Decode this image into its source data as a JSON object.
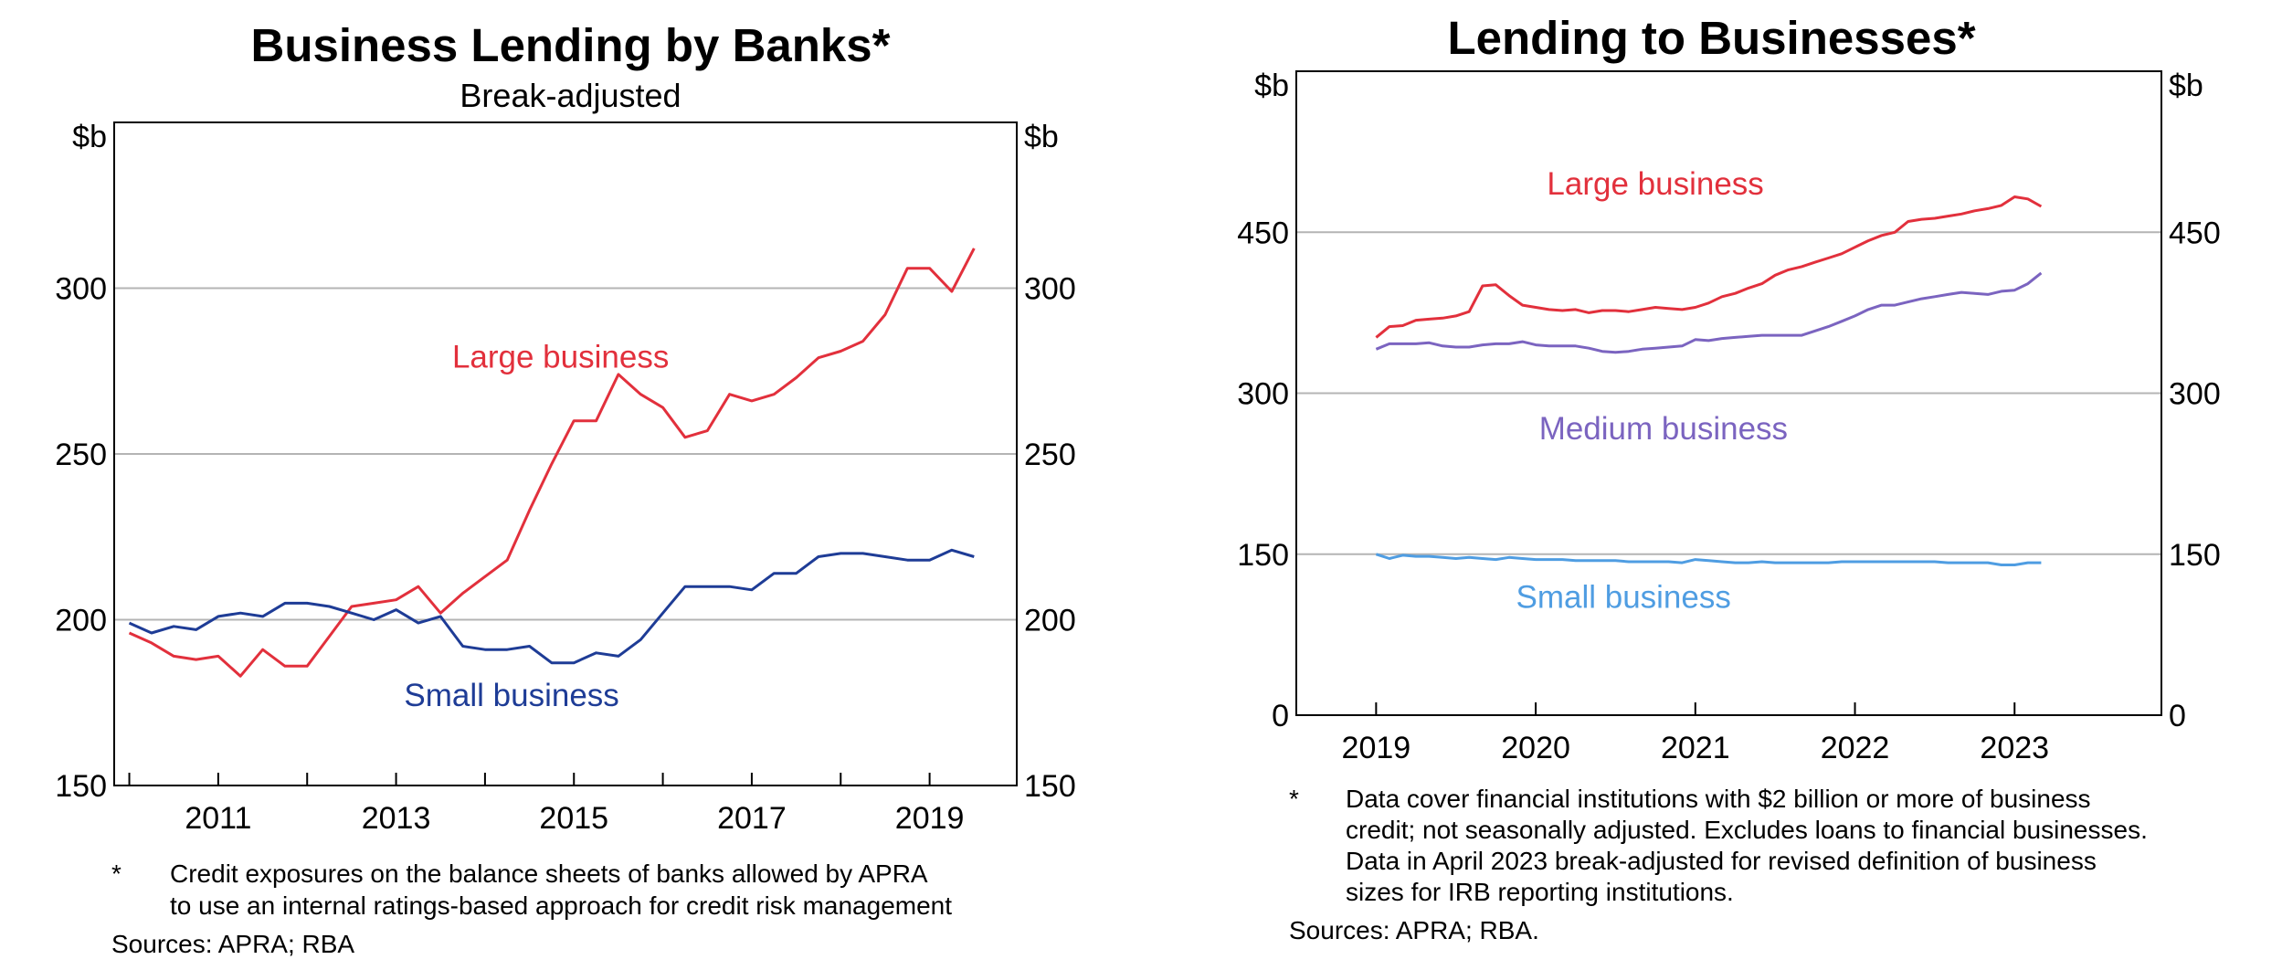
{
  "charts": [
    {
      "title": "Business Lending by Banks*",
      "subtitle": "Break-adjusted",
      "unit_left": "$b",
      "unit_right": "$b",
      "footnote_mark": "*",
      "footnote_lines": [
        "Credit exposures on the balance sheets of banks allowed by APRA",
        "to use an internal ratings-based approach for credit risk management"
      ],
      "sources": "Sources: APRA; RBA"
    },
    {
      "title": "Lending to Businesses*",
      "unit_left": "$b",
      "unit_right": "$b",
      "footnote_mark": "*",
      "footnote_lines": [
        "Data cover financial institutions with $2 billion or more of business",
        "credit; not seasonally adjusted. Excludes loans to financial businesses.",
        "Data in April 2023 break-adjusted for revised definition of business",
        "sizes for IRB reporting institutions."
      ],
      "sources": "Sources: APRA; RBA."
    }
  ],
  "chart_data": [
    {
      "type": "line",
      "title": "Business Lending by Banks*",
      "subtitle": "Break-adjusted",
      "ylabel": "$b",
      "ylim": [
        150,
        350
      ],
      "yticks": [
        150,
        200,
        250,
        300
      ],
      "xlim": [
        2009.83,
        2019.98
      ],
      "xticks": [
        2011,
        2013,
        2015,
        2017,
        2019
      ],
      "grid": true,
      "series": [
        {
          "name": "Large business",
          "color": "#e2303c",
          "x": [
            2010.0,
            2010.25,
            2010.5,
            2010.75,
            2011.0,
            2011.25,
            2011.5,
            2011.75,
            2012.0,
            2012.25,
            2012.5,
            2012.75,
            2013.0,
            2013.25,
            2013.5,
            2013.75,
            2014.0,
            2014.25,
            2014.5,
            2014.75,
            2015.0,
            2015.25,
            2015.5,
            2015.75,
            2016.0,
            2016.25,
            2016.5,
            2016.75,
            2017.0,
            2017.25,
            2017.5,
            2017.75,
            2018.0,
            2018.25,
            2018.5,
            2018.75,
            2019.0,
            2019.25,
            2019.5
          ],
          "values": [
            196,
            193,
            189,
            188,
            189,
            183,
            191,
            186,
            186,
            195,
            204,
            205,
            206,
            210,
            202,
            208,
            213,
            218,
            233,
            247,
            260,
            260,
            274,
            268,
            264,
            255,
            257,
            268,
            266,
            268,
            273,
            279,
            281,
            284,
            292,
            306,
            306,
            299,
            312
          ]
        },
        {
          "name": "Small business",
          "color": "#1e3c96",
          "x": [
            2010.0,
            2010.25,
            2010.5,
            2010.75,
            2011.0,
            2011.25,
            2011.5,
            2011.75,
            2012.0,
            2012.25,
            2012.5,
            2012.75,
            2013.0,
            2013.25,
            2013.5,
            2013.75,
            2014.0,
            2014.25,
            2014.5,
            2014.75,
            2015.0,
            2015.25,
            2015.5,
            2015.75,
            2016.0,
            2016.25,
            2016.5,
            2016.75,
            2017.0,
            2017.25,
            2017.5,
            2017.75,
            2018.0,
            2018.25,
            2018.5,
            2018.75,
            2019.0,
            2019.25,
            2019.5
          ],
          "values": [
            199,
            196,
            198,
            197,
            201,
            202,
            201,
            205,
            205,
            204,
            202,
            200,
            203,
            199,
            201,
            192,
            191,
            191,
            192,
            187,
            187,
            190,
            189,
            194,
            202,
            210,
            210,
            210,
            209,
            214,
            214,
            219,
            220,
            220,
            219,
            218,
            218,
            221,
            219
          ]
        }
      ],
      "annotations": [
        {
          "text": "Large business",
          "color": "#e2303c"
        },
        {
          "text": "Small business",
          "color": "#1e3c96"
        }
      ]
    },
    {
      "type": "line",
      "title": "Lending to Businesses*",
      "ylabel": "$b",
      "ylim": [
        0,
        600
      ],
      "yticks": [
        0,
        150,
        300,
        450
      ],
      "xlim": [
        2018.5,
        2023.92
      ],
      "xticks": [
        2019,
        2020,
        2021,
        2022,
        2023
      ],
      "grid": true,
      "series": [
        {
          "name": "Large business",
          "color": "#e2303c",
          "x": [
            2019.0,
            2019.083,
            2019.167,
            2019.25,
            2019.333,
            2019.417,
            2019.5,
            2019.583,
            2019.667,
            2019.75,
            2019.833,
            2019.917,
            2020.0,
            2020.083,
            2020.167,
            2020.25,
            2020.333,
            2020.417,
            2020.5,
            2020.583,
            2020.667,
            2020.75,
            2020.833,
            2020.917,
            2021.0,
            2021.083,
            2021.167,
            2021.25,
            2021.333,
            2021.417,
            2021.5,
            2021.583,
            2021.667,
            2021.75,
            2021.833,
            2021.917,
            2022.0,
            2022.083,
            2022.167,
            2022.25,
            2022.333,
            2022.417,
            2022.5,
            2022.583,
            2022.667,
            2022.75,
            2022.833,
            2022.917,
            2023.0,
            2023.083,
            2023.167
          ],
          "values": [
            352,
            362,
            363,
            368,
            369,
            370,
            372,
            376,
            400,
            401,
            391,
            382,
            380,
            378,
            377,
            378,
            375,
            377,
            377,
            376,
            378,
            380,
            379,
            378,
            380,
            384,
            390,
            393,
            398,
            402,
            410,
            415,
            418,
            422,
            426,
            430,
            436,
            442,
            447,
            450,
            460,
            462,
            463,
            465,
            467,
            470,
            472,
            475,
            483,
            481,
            474
          ]
        },
        {
          "name": "Medium business",
          "color": "#7b64c0",
          "x": [
            2019.0,
            2019.083,
            2019.167,
            2019.25,
            2019.333,
            2019.417,
            2019.5,
            2019.583,
            2019.667,
            2019.75,
            2019.833,
            2019.917,
            2020.0,
            2020.083,
            2020.167,
            2020.25,
            2020.333,
            2020.417,
            2020.5,
            2020.583,
            2020.667,
            2020.75,
            2020.833,
            2020.917,
            2021.0,
            2021.083,
            2021.167,
            2021.25,
            2021.333,
            2021.417,
            2021.5,
            2021.583,
            2021.667,
            2021.75,
            2021.833,
            2021.917,
            2022.0,
            2022.083,
            2022.167,
            2022.25,
            2022.333,
            2022.417,
            2022.5,
            2022.583,
            2022.667,
            2022.75,
            2022.833,
            2022.917,
            2023.0,
            2023.083,
            2023.167
          ],
          "values": [
            341,
            346,
            346,
            346,
            347,
            344,
            343,
            343,
            345,
            346,
            346,
            348,
            345,
            344,
            344,
            344,
            342,
            339,
            338,
            339,
            341,
            342,
            343,
            344,
            350,
            349,
            351,
            352,
            353,
            354,
            354,
            354,
            354,
            358,
            362,
            367,
            372,
            378,
            382,
            382,
            385,
            388,
            390,
            392,
            394,
            393,
            392,
            395,
            396,
            402,
            412
          ]
        },
        {
          "name": "Small business",
          "color": "#4f9de2",
          "x": [
            2019.0,
            2019.083,
            2019.167,
            2019.25,
            2019.333,
            2019.417,
            2019.5,
            2019.583,
            2019.667,
            2019.75,
            2019.833,
            2019.917,
            2020.0,
            2020.083,
            2020.167,
            2020.25,
            2020.333,
            2020.417,
            2020.5,
            2020.583,
            2020.667,
            2020.75,
            2020.833,
            2020.917,
            2021.0,
            2021.083,
            2021.167,
            2021.25,
            2021.333,
            2021.417,
            2021.5,
            2021.583,
            2021.667,
            2021.75,
            2021.833,
            2021.917,
            2022.0,
            2022.083,
            2022.167,
            2022.25,
            2022.333,
            2022.417,
            2022.5,
            2022.583,
            2022.667,
            2022.75,
            2022.833,
            2022.917,
            2023.0,
            2023.083,
            2023.167
          ],
          "values": [
            150,
            146,
            149,
            148,
            148,
            147,
            146,
            147,
            146,
            145,
            147,
            146,
            145,
            145,
            145,
            144,
            144,
            144,
            144,
            143,
            143,
            143,
            143,
            142,
            145,
            144,
            143,
            142,
            142,
            143,
            142,
            142,
            142,
            142,
            142,
            143,
            143,
            143,
            143,
            143,
            143,
            143,
            143,
            142,
            142,
            142,
            142,
            140,
            140,
            142,
            142
          ]
        }
      ],
      "annotations": [
        {
          "text": "Large business",
          "color": "#e2303c"
        },
        {
          "text": "Medium business",
          "color": "#7b64c0"
        },
        {
          "text": "Small business",
          "color": "#4f9de2"
        }
      ]
    }
  ]
}
